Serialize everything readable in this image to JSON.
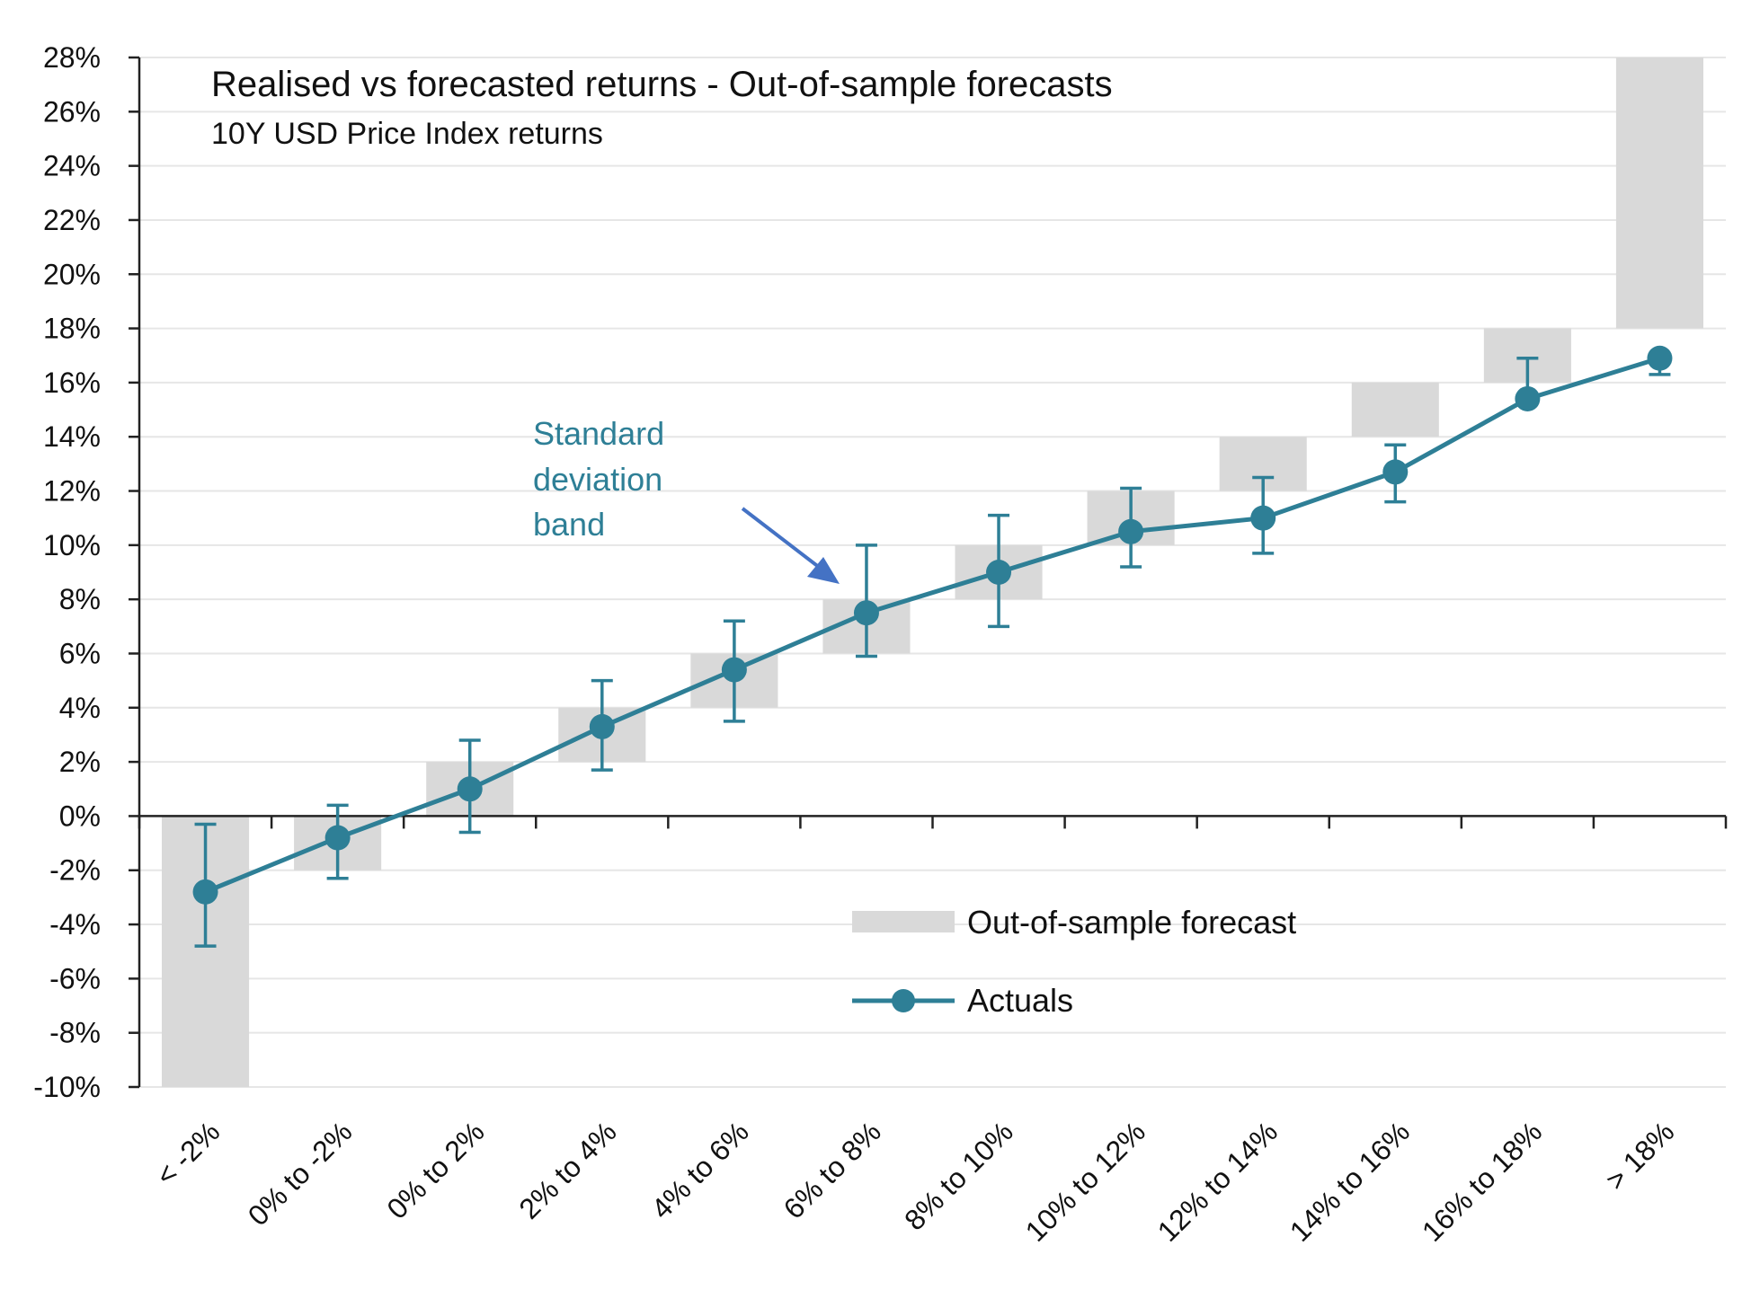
{
  "chart_data": {
    "type": "line",
    "title": "Realised vs forecasted returns - Out-of-sample forecasts",
    "subtitle": "10Y USD Price Index returns",
    "categories": [
      "< -2%",
      "0% to -2%",
      "0% to 2%",
      "2% to 4%",
      "4% to 6%",
      "6% to 8%",
      "8% to 10%",
      "10% to 12%",
      "12% to 14%",
      "14% to 16%",
      "16% to 18%",
      "> 18%"
    ],
    "y_ticks": [
      "28%",
      "26%",
      "24%",
      "22%",
      "20%",
      "18%",
      "16%",
      "14%",
      "12%",
      "10%",
      "8%",
      "6%",
      "4%",
      "2%",
      "0%",
      "-2%",
      "-4%",
      "-6%",
      "-8%",
      "-10%"
    ],
    "ylim": [
      -10,
      28
    ],
    "grid": true,
    "legend_position": "lower-right",
    "series": [
      {
        "name": "Out-of-sample forecast",
        "type": "floating-bar",
        "color": "#d9d9d9",
        "ranges": [
          [
            -10,
            0
          ],
          [
            -2,
            0
          ],
          [
            0,
            2
          ],
          [
            2,
            4
          ],
          [
            4,
            6
          ],
          [
            6,
            8
          ],
          [
            8,
            10
          ],
          [
            10,
            12
          ],
          [
            12,
            14
          ],
          [
            14,
            16
          ],
          [
            16,
            18
          ],
          [
            18,
            28
          ]
        ]
      },
      {
        "name": "Actuals",
        "type": "line-with-error-bars",
        "color": "#2e7f96",
        "values": [
          -2.8,
          -0.8,
          1.0,
          3.3,
          5.4,
          7.5,
          9.0,
          10.5,
          11.0,
          12.7,
          15.4,
          16.9
        ],
        "error_low": [
          -4.8,
          -2.3,
          -0.6,
          1.7,
          3.5,
          5.9,
          7.0,
          9.2,
          9.7,
          11.6,
          15.4,
          16.3
        ],
        "error_high": [
          -0.3,
          0.4,
          2.8,
          5.0,
          7.2,
          10.0,
          11.1,
          12.1,
          12.5,
          13.7,
          16.9,
          16.9
        ]
      }
    ],
    "annotation": {
      "lines": [
        "Standard",
        "deviation",
        "band"
      ],
      "color": "#2e7f96",
      "arrow_color": "#4472c4"
    }
  }
}
